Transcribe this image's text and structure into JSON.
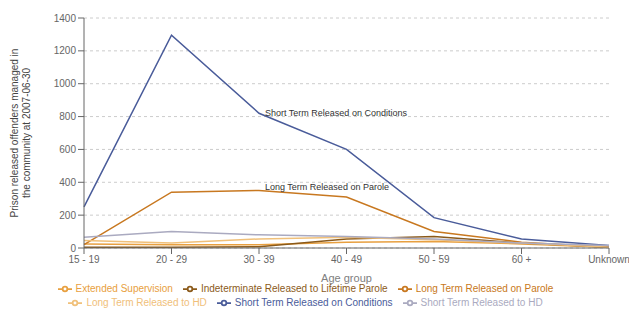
{
  "chart_data": {
    "type": "line",
    "x_label": "Age group",
    "y_label": "Prison released offenders managed in\nthe community at 2007-06-30",
    "categories": [
      "15 - 19",
      "20 - 29",
      "30 - 39",
      "40 - 49",
      "50 - 59",
      "60 +",
      "Unknown"
    ],
    "series": [
      {
        "name": "Extended Supervision",
        "color": "#E8A040",
        "values": [
          25,
          20,
          20,
          35,
          40,
          25,
          5
        ]
      },
      {
        "name": "Indeterminate Released to Lifetime Parole",
        "color": "#8B5A1A",
        "values": [
          5,
          5,
          8,
          55,
          70,
          30,
          5
        ]
      },
      {
        "name": "Long Term Released on Parole",
        "color": "#C87820",
        "values": [
          20,
          340,
          350,
          310,
          100,
          35,
          5
        ]
      },
      {
        "name": "Long Term Released to HD",
        "color": "#F0C07A",
        "values": [
          45,
          30,
          55,
          65,
          50,
          30,
          5
        ]
      },
      {
        "name": "Short Term Released on Conditions",
        "color": "#4A5C9A",
        "values": [
          250,
          1295,
          820,
          600,
          185,
          55,
          15
        ]
      },
      {
        "name": "Short Term Released to HD",
        "color": "#AAAAC0",
        "values": [
          65,
          100,
          80,
          70,
          55,
          30,
          15
        ]
      }
    ],
    "annotations": [
      {
        "text": "Short Term Released on Conditions",
        "x": "30 - 39",
        "y": 820
      },
      {
        "text": "Long Term Released on Parole",
        "x": "30 - 39",
        "y": 370
      }
    ],
    "ylim": [
      0,
      1400
    ],
    "yticks": [
      0,
      200,
      400,
      600,
      800,
      1000,
      1200,
      1400
    ],
    "grid": true,
    "legend": "bottom"
  }
}
